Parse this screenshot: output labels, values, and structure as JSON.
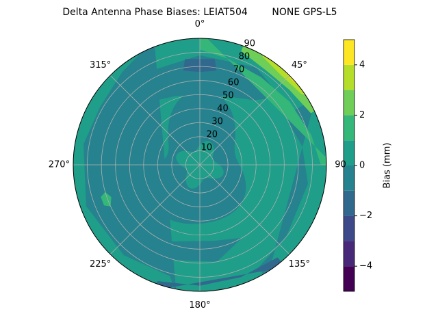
{
  "chart_data": {
    "type": "polar-contour",
    "title": "Delta Antenna Phase Biases: LEIAT504        NONE GPS-L5",
    "theta_ticks": [
      {
        "value": 0,
        "label": "0°"
      },
      {
        "value": 45,
        "label": "45°"
      },
      {
        "value": 90,
        "label": "90"
      },
      {
        "value": 135,
        "label": "135°"
      },
      {
        "value": 180,
        "label": "180°"
      },
      {
        "value": 225,
        "label": "225°"
      },
      {
        "value": 270,
        "label": "270°"
      },
      {
        "value": 315,
        "label": "315°"
      }
    ],
    "rlim": [
      0,
      90
    ],
    "rticks": [
      10,
      20,
      30,
      40,
      50,
      60,
      70,
      80,
      90
    ],
    "levels": [
      -5,
      -4,
      -3,
      -2,
      -1,
      0,
      1,
      2,
      3,
      4,
      5
    ],
    "colors": [
      "#440154",
      "#482878",
      "#3e4989",
      "#31688e",
      "#26828e",
      "#1f9e89",
      "#35b779",
      "#6ece58",
      "#b5de2b",
      "#fde725"
    ],
    "colorbar_label": "Bias (mm)",
    "clim": [
      -5,
      5
    ],
    "cticks": [
      {
        "value": -4,
        "label": "−4"
      },
      {
        "value": -2,
        "label": "−2"
      },
      0,
      2,
      4
    ],
    "grid": true
  }
}
